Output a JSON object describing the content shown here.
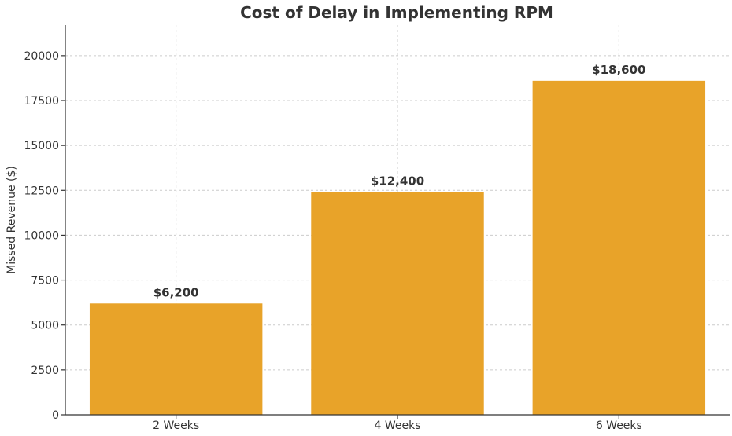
{
  "chart_data": {
    "type": "bar",
    "title": "Cost of Delay in Implementing RPM",
    "xlabel": "",
    "ylabel": "Missed Revenue ($)",
    "categories": [
      "2 Weeks",
      "4 Weeks",
      "6 Weeks"
    ],
    "values": [
      6200,
      12400,
      18600
    ],
    "data_labels": [
      "$6,200",
      "$12,400",
      "$18,600"
    ],
    "ylim": [
      0,
      21700
    ],
    "yticks": [
      0,
      2500,
      5000,
      7500,
      10000,
      12500,
      15000,
      17500,
      20000
    ],
    "ytick_labels": [
      "0",
      "2500",
      "5000",
      "7500",
      "10000",
      "12500",
      "15000",
      "17500",
      "20000"
    ],
    "bar_color": "#E8A329",
    "grid": true,
    "legend": "none"
  }
}
